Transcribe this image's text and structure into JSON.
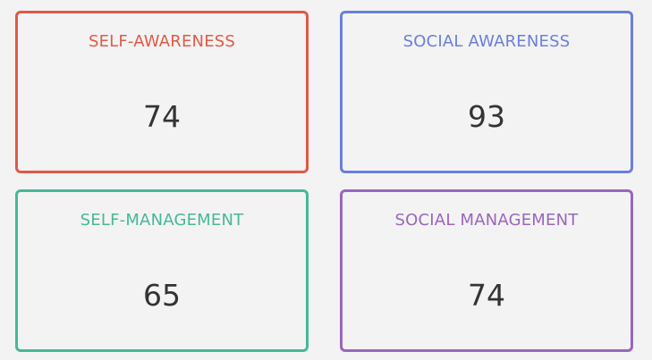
{
  "cards": [
    {
      "label": "SELF-AWARENESS",
      "value": "74",
      "color": "#e05a47"
    },
    {
      "label": "SOCIAL AWARENESS",
      "value": "93",
      "color": "#6b7fdc"
    },
    {
      "label": "SELF-MANAGEMENT",
      "value": "65",
      "color": "#46b898"
    },
    {
      "label": "SOCIAL MANAGEMENT",
      "value": "74",
      "color": "#9a66c0"
    }
  ]
}
